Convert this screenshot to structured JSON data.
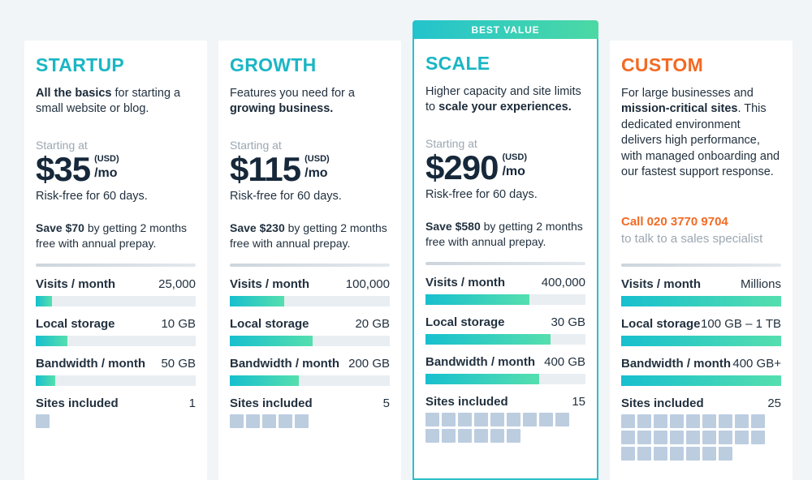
{
  "banner": {
    "label": "BEST VALUE"
  },
  "shared": {
    "starting_at": "Starting at",
    "currency": "(USD)",
    "per_month": "/mo",
    "risk_free": "Risk-free for 60 days.",
    "save_rest": " by getting 2 months free with annual prepay."
  },
  "colors": {
    "background": "#f1f5f8",
    "card": "#ffffff",
    "teal_accent": "#1ab6c4",
    "orange_accent": "#f26a24",
    "bar_gradient_start": "#17bfce",
    "bar_gradient_end": "#55dfae",
    "banner_gradient_start": "#23c3cd",
    "banner_gradient_end": "#4cd9a4",
    "best_card_border": "#2bc0ca",
    "bar_track": "#e9eef2",
    "sites_square": "#bccddf",
    "dark_text": "#22313f",
    "muted_text": "#9ba7b1"
  },
  "plans": [
    {
      "name": "STARTUP",
      "accent": "#1ab6c4",
      "best_value": false,
      "description": [
        {
          "text": "All the basics",
          "bold": true
        },
        {
          "text": " for starting a small website or blog.",
          "bold": false
        }
      ],
      "pricing": {
        "amount": "$35",
        "save_bold": "Save $70"
      },
      "features": [
        {
          "label": "Visits / month",
          "value": "25,000",
          "fill": 10
        },
        {
          "label": "Local storage",
          "value": "10 GB",
          "fill": 20
        },
        {
          "label": "Bandwidth / month",
          "value": "50 GB",
          "fill": 12
        },
        {
          "label": "Sites included",
          "value": "1",
          "squares": 1
        }
      ]
    },
    {
      "name": "GROWTH",
      "accent": "#1ab6c4",
      "best_value": false,
      "description": [
        {
          "text": "Features you need for a ",
          "bold": false
        },
        {
          "text": "growing business.",
          "bold": true
        }
      ],
      "pricing": {
        "amount": "$115",
        "save_bold": "Save $230"
      },
      "features": [
        {
          "label": "Visits / month",
          "value": "100,000",
          "fill": 34
        },
        {
          "label": "Local storage",
          "value": "20 GB",
          "fill": 52
        },
        {
          "label": "Bandwidth / month",
          "value": "200 GB",
          "fill": 43
        },
        {
          "label": "Sites included",
          "value": "5",
          "squares": 5
        }
      ]
    },
    {
      "name": "SCALE",
      "accent": "#1ab6c4",
      "best_value": true,
      "description": [
        {
          "text": "Higher capacity and site limits to ",
          "bold": false
        },
        {
          "text": "scale your experiences.",
          "bold": true
        }
      ],
      "pricing": {
        "amount": "$290",
        "save_bold": "Save $580"
      },
      "features": [
        {
          "label": "Visits / month",
          "value": "400,000",
          "fill": 65
        },
        {
          "label": "Local storage",
          "value": "30 GB",
          "fill": 78
        },
        {
          "label": "Bandwidth / month",
          "value": "400 GB",
          "fill": 71
        },
        {
          "label": "Sites included",
          "value": "15",
          "squares": 15
        }
      ]
    },
    {
      "name": "CUSTOM",
      "accent": "#f26a24",
      "best_value": false,
      "description": [
        {
          "text": "For large businesses and ",
          "bold": false
        },
        {
          "text": "mission-critical sites",
          "bold": true
        },
        {
          "text": ". This dedicated environment delivers high performance, with managed onboarding and our fastest support response.",
          "bold": false
        }
      ],
      "contact": {
        "call": "Call 020 3770 9704",
        "subtext": "to talk to a sales specialist"
      },
      "features": [
        {
          "label": "Visits / month",
          "value": "Millions",
          "fill": 100
        },
        {
          "label": "Local storage",
          "value": "100 GB – 1 TB",
          "fill": 100
        },
        {
          "label": "Bandwidth / month",
          "value": "400 GB+",
          "fill": 100
        },
        {
          "label": "Sites included",
          "value": "25",
          "squares": 25
        }
      ]
    }
  ]
}
